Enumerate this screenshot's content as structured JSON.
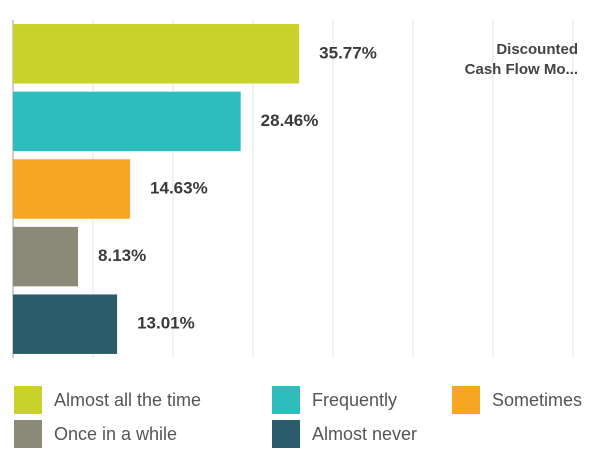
{
  "chart_data": {
    "type": "barh",
    "title": "Discounted\nCash Flow Mo...",
    "categories": [
      "Almost all the time",
      "Frequently",
      "Sometimes",
      "Once in a while",
      "Almost never"
    ],
    "values": [
      35.77,
      28.46,
      14.63,
      8.13,
      13.01
    ],
    "value_labels": [
      "35.77%",
      "28.46%",
      "14.63%",
      "8.13%",
      "13.01%"
    ],
    "colors": [
      "#c9d12b",
      "#2fbcbd",
      "#f6a623",
      "#8b8a79",
      "#2b5c6b"
    ],
    "xlim": [
      0,
      70
    ],
    "xticks": [
      0,
      10,
      20,
      30,
      40,
      50,
      60,
      70
    ],
    "grid": true
  }
}
